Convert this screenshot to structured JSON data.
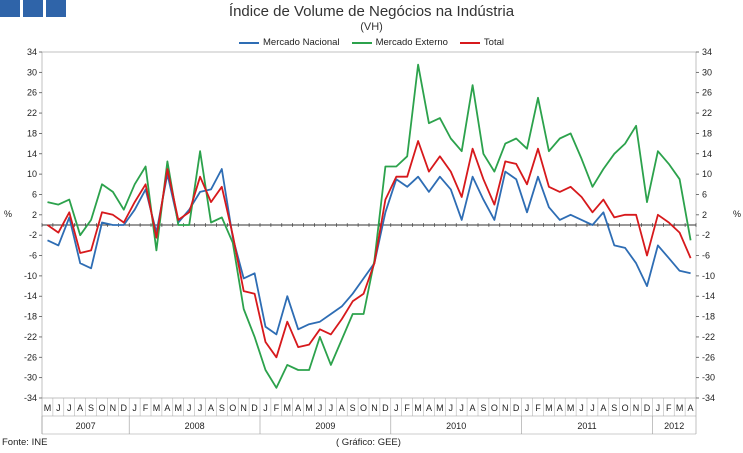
{
  "header": {
    "logo_colors": [
      "#2f64a9",
      "#2f64a9",
      "#2f64a9"
    ]
  },
  "chart_data": {
    "type": "line",
    "title": "Índice de Volume de Negócios na Indústria",
    "subtitle": "(VH)",
    "ylabel": "%",
    "ylim": [
      -34,
      34
    ],
    "yticks": [
      -34,
      -30,
      -26,
      -22,
      -18,
      -14,
      -10,
      -6,
      -2,
      2,
      6,
      10,
      14,
      18,
      22,
      26,
      30,
      34
    ],
    "y_ticklabels": [
      "-34",
      "-30",
      "-26",
      "-22",
      "-18",
      "-14",
      "-10",
      "-6",
      "-2",
      "2",
      "6",
      "10",
      "14",
      "18",
      "22",
      "26",
      "30",
      "34"
    ],
    "reference_line": 0,
    "months": [
      "M",
      "J",
      "J",
      "A",
      "S",
      "O",
      "N",
      "D",
      "J",
      "F",
      "M",
      "A",
      "M",
      "J",
      "J",
      "A",
      "S",
      "O",
      "N",
      "D",
      "J",
      "F",
      "M",
      "A",
      "M",
      "J",
      "J",
      "A",
      "S",
      "O",
      "N",
      "D",
      "J",
      "F",
      "M",
      "A",
      "M",
      "J",
      "J",
      "A",
      "S",
      "O",
      "N",
      "D",
      "J",
      "F",
      "M",
      "A",
      "M",
      "J",
      "J",
      "A",
      "S",
      "O",
      "N",
      "D",
      "J",
      "F",
      "M",
      "A"
    ],
    "years": [
      {
        "label": "2007",
        "start": 0,
        "count": 8
      },
      {
        "label": "2008",
        "start": 8,
        "count": 12
      },
      {
        "label": "2009",
        "start": 20,
        "count": 12
      },
      {
        "label": "2010",
        "start": 32,
        "count": 12
      },
      {
        "label": "2011",
        "start": 44,
        "count": 12
      },
      {
        "label": "2012",
        "start": 56,
        "count": 4
      }
    ],
    "series": [
      {
        "name": "Mercado Nacional",
        "color": "#2e6db4",
        "values": [
          -3.0,
          -4.0,
          1.5,
          -7.5,
          -8.5,
          0.5,
          0.0,
          0.0,
          3.0,
          7.0,
          -1.5,
          10.0,
          0.5,
          3.0,
          6.5,
          7.0,
          11.0,
          -2.5,
          -10.5,
          -9.5,
          -20.0,
          -21.5,
          -14.0,
          -20.5,
          -19.5,
          -19.0,
          -17.5,
          -16.0,
          -13.5,
          -10.5,
          -7.5,
          2.5,
          9.0,
          7.5,
          9.5,
          6.5,
          9.5,
          7.0,
          1.0,
          9.5,
          5.0,
          1.0,
          10.5,
          9.0,
          2.5,
          9.5,
          3.5,
          1.0,
          2.0,
          1.0,
          0.0,
          2.5,
          -4.0,
          -4.5,
          -7.5,
          -12.0,
          -4.0,
          -6.5,
          -9.0,
          -9.5
        ]
      },
      {
        "name": "Mercado Externo",
        "color": "#2ca24c",
        "values": [
          4.5,
          4.0,
          5.0,
          -2.0,
          1.0,
          8.0,
          6.5,
          3.0,
          8.0,
          11.5,
          -5.0,
          12.5,
          0.0,
          0.0,
          14.5,
          0.5,
          1.5,
          -3.5,
          -16.5,
          -22.0,
          -28.5,
          -32.0,
          -27.5,
          -28.5,
          -28.5,
          -22.0,
          -27.5,
          -22.5,
          -17.5,
          -17.5,
          -7.0,
          11.5,
          11.5,
          13.5,
          31.5,
          20.0,
          21.0,
          17.0,
          14.5,
          27.5,
          14.0,
          10.5,
          16.0,
          17.0,
          15.0,
          25.0,
          14.5,
          17.0,
          18.0,
          13.0,
          7.5,
          11.0,
          14.0,
          16.0,
          19.5,
          4.5,
          14.5,
          12.0,
          9.0,
          -3.0
        ]
      },
      {
        "name": "Total",
        "color": "#d7191c",
        "values": [
          0.0,
          -1.5,
          2.5,
          -5.5,
          -5.0,
          2.5,
          2.0,
          0.5,
          4.5,
          8.0,
          -2.5,
          11.0,
          1.0,
          2.5,
          9.5,
          4.5,
          7.5,
          -2.0,
          -13.0,
          -13.5,
          -23.0,
          -26.0,
          -19.0,
          -24.0,
          -23.5,
          -20.5,
          -21.5,
          -18.5,
          -15.0,
          -13.5,
          -7.5,
          5.0,
          9.5,
          9.5,
          16.5,
          10.5,
          13.5,
          10.5,
          5.5,
          15.0,
          9.0,
          4.0,
          12.5,
          12.0,
          8.0,
          15.0,
          7.5,
          6.5,
          7.5,
          5.5,
          2.5,
          5.0,
          1.5,
          2.0,
          2.0,
          -6.0,
          2.0,
          0.5,
          -1.5,
          -6.5
        ]
      }
    ]
  },
  "footer": {
    "source": "Fonte: INE",
    "credit": "( Gráfico: GEE)"
  }
}
